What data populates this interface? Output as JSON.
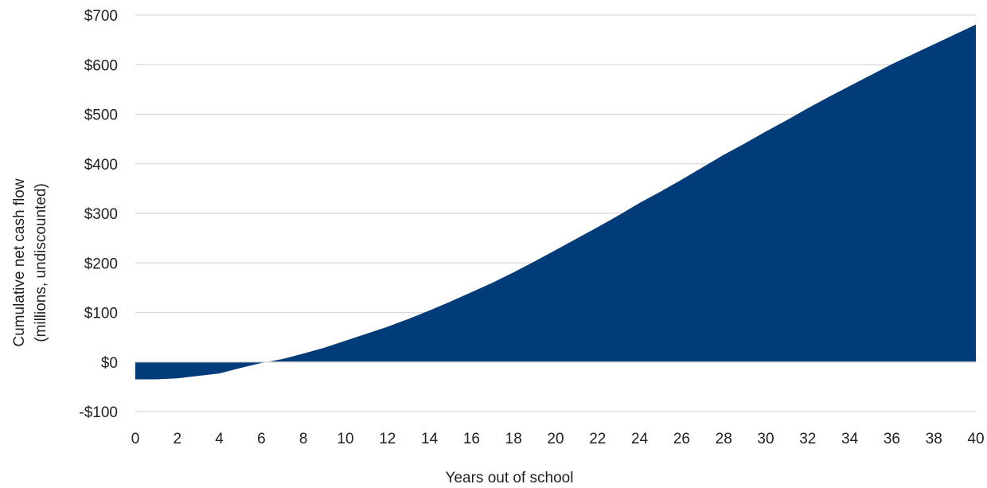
{
  "chart_data": {
    "type": "area",
    "title": "",
    "xlabel": "Years out of school",
    "ylabel_lines": [
      "Cumulative net cash flow",
      "(millions, undiscounted)"
    ],
    "xlim": [
      0,
      40
    ],
    "ylim": [
      -100,
      700
    ],
    "x_ticks": [
      0,
      2,
      4,
      6,
      8,
      10,
      12,
      14,
      16,
      18,
      20,
      22,
      24,
      26,
      28,
      30,
      32,
      34,
      36,
      38,
      40
    ],
    "y_ticks": [
      -100,
      0,
      100,
      200,
      300,
      400,
      500,
      600,
      700
    ],
    "y_tick_labels": [
      "-$100",
      "$0",
      "$100",
      "$200",
      "$300",
      "$400",
      "$500",
      "$600",
      "$700"
    ],
    "grid": "horizontal",
    "series": [
      {
        "color": "#003b7a",
        "x": [
          0,
          1,
          2,
          3,
          4,
          5,
          6,
          7,
          8,
          9,
          10,
          11,
          12,
          13,
          14,
          15,
          16,
          17,
          18,
          19,
          20,
          21,
          22,
          23,
          24,
          25,
          26,
          27,
          28,
          29,
          30,
          31,
          32,
          33,
          34,
          35,
          36,
          37,
          38,
          39,
          40
        ],
        "y": [
          -35,
          -35,
          -33,
          -28,
          -23,
          -12,
          -2,
          6,
          17,
          29,
          43,
          57,
          71,
          87,
          104,
          122,
          141,
          160,
          181,
          203,
          226,
          249,
          272,
          296,
          321,
          344,
          368,
          393,
          418,
          441,
          465,
          488,
          512,
          535,
          557,
          579,
          601,
          621,
          641,
          661,
          681
        ]
      }
    ]
  }
}
